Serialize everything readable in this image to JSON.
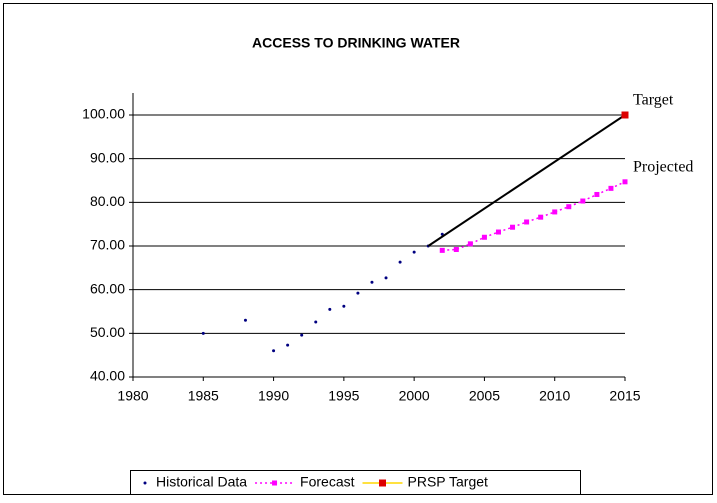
{
  "chart_data": {
    "type": "line",
    "title": "ACCESS TO DRINKING WATER",
    "xlim": [
      1980,
      2015
    ],
    "xticks": [
      1980,
      1985,
      1990,
      1995,
      2000,
      2005,
      2010,
      2015
    ],
    "ylim": [
      40,
      100
    ],
    "yticks": [
      {
        "value": 40,
        "label": "40.00"
      },
      {
        "value": 50,
        "label": "50.00"
      },
      {
        "value": 60,
        "label": "60.00"
      },
      {
        "value": 70,
        "label": "70.00"
      },
      {
        "value": 80,
        "label": "80.00"
      },
      {
        "value": 90,
        "label": "90.00"
      },
      {
        "value": 100,
        "label": "100.00"
      }
    ],
    "grid": true,
    "legend": "bottom",
    "series": [
      {
        "name": "Historical Data",
        "style": "markers",
        "color": "#000080",
        "x": [
          1985,
          1988,
          1990,
          1991,
          1992,
          1993,
          1994,
          1995,
          1996,
          1997,
          1998,
          1999,
          2000,
          2001,
          2002
        ],
        "values": [
          50,
          53,
          46,
          47.3,
          49.6,
          52.6,
          55.5,
          56.2,
          59.2,
          61.7,
          62.7,
          66.3,
          68.6,
          70,
          72.7
        ]
      },
      {
        "name": "Forecast",
        "style": "dotted-line-markers",
        "color": "#ff00ff",
        "x": [
          2002,
          2003,
          2004,
          2005,
          2006,
          2007,
          2008,
          2009,
          2010,
          2011,
          2012,
          2013,
          2014,
          2015
        ],
        "values": [
          69,
          69.2,
          70.5,
          72,
          73.2,
          74.3,
          75.5,
          76.6,
          77.8,
          79,
          80.3,
          81.8,
          83.2,
          84.7
        ]
      },
      {
        "name": "PRSP Target",
        "style": "line-end-marker",
        "color": "#000000",
        "legend_color": "#ffd700",
        "marker_color": "#dd0000",
        "x": [
          2001,
          2015
        ],
        "values": [
          70,
          100
        ]
      }
    ],
    "annotations": [
      {
        "text": "Target",
        "series": 2
      },
      {
        "text": "Projected",
        "series": 1
      }
    ]
  }
}
